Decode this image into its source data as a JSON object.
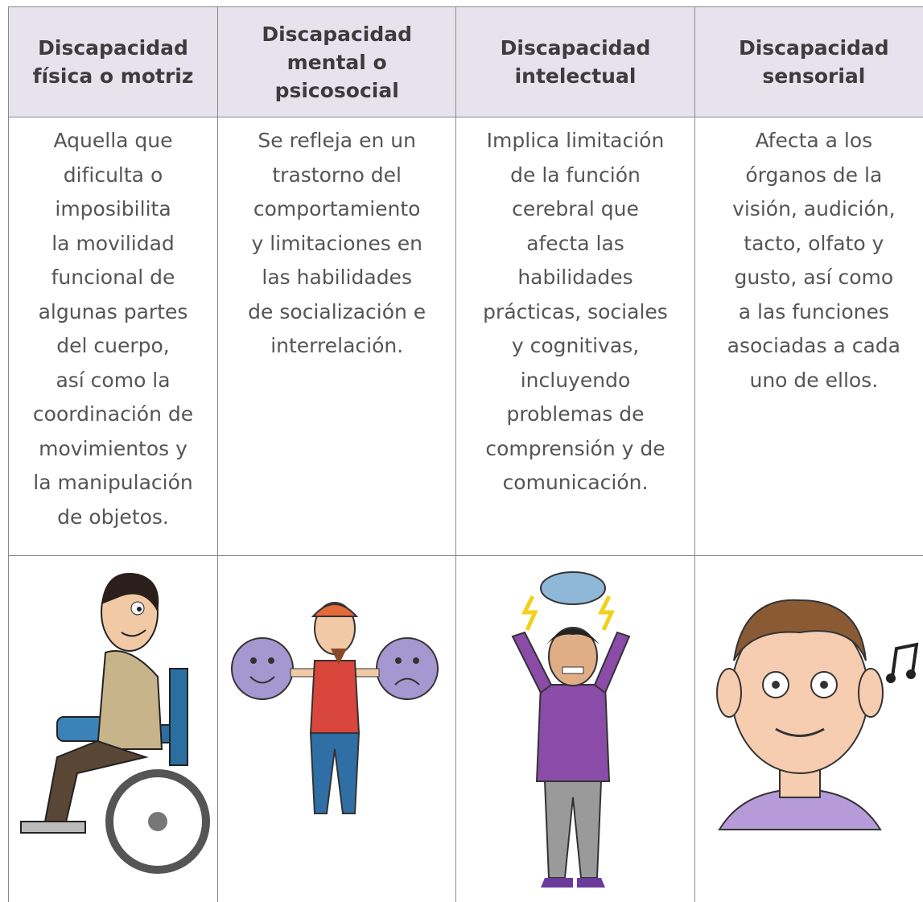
{
  "table": {
    "header": [
      "Discapacidad física o motriz",
      "Discapacidad mental o psicosocial",
      "Discapacidad intelectual",
      "Discapacidad sensorial"
    ],
    "descriptions": [
      [
        "Aquella que",
        "dificulta o",
        "imposibilita",
        "la movilidad",
        "funcional de",
        "algunas partes",
        "del cuerpo,",
        "así como la",
        "coordinación de",
        "movimientos y",
        "la manipulación",
        "de objetos."
      ],
      [
        "Se refleja en un",
        "trastorno del",
        "comportamiento",
        "y limitaciones en",
        "las habilidades",
        "de socialización e",
        "interrelación."
      ],
      [
        "Implica limitación",
        "de la función",
        "cerebral que",
        "afecta las",
        "habilidades",
        "prácticas, sociales",
        "y cognitivas,",
        "incluyendo",
        "problemas de",
        "comprensión y de",
        "comunicación."
      ],
      [
        "Afecta a los",
        "órganos de la",
        "visión, audición,",
        "tacto, olfato y",
        "gusto, así como",
        "a las funciones",
        "asociadas a cada",
        "uno de ellos."
      ]
    ]
  }
}
